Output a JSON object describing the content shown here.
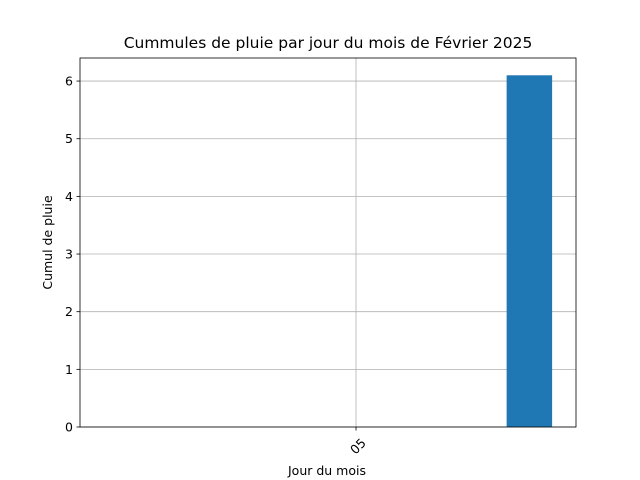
{
  "chart_data": {
    "type": "bar",
    "title": "Cummules de pluie par jour du mois de Février 2025",
    "xlabel": "Jour du mois",
    "ylabel": "Cumul de pluie",
    "x_ticks": [
      "05"
    ],
    "categories": [
      "05"
    ],
    "values": [
      6.1
    ],
    "ylim": [
      0,
      6.4
    ],
    "yticks": [
      "0",
      "1",
      "2",
      "3",
      "4",
      "5",
      "6"
    ],
    "grid": true,
    "colors": {
      "bar": "#1f77b4",
      "grid": "#b0b0b0",
      "axis": "#000000"
    }
  }
}
